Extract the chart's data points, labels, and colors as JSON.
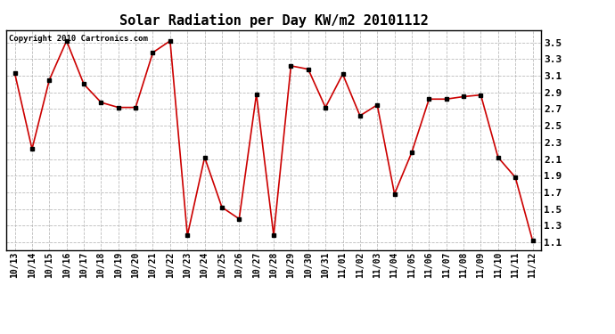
{
  "title": "Solar Radiation per Day KW/m2 20101112",
  "copyright_text": "Copyright 2010 Cartronics.com",
  "labels": [
    "10/13",
    "10/14",
    "10/15",
    "10/16",
    "10/17",
    "10/18",
    "10/19",
    "10/20",
    "10/21",
    "10/22",
    "10/23",
    "10/24",
    "10/25",
    "10/26",
    "10/27",
    "10/28",
    "10/29",
    "10/30",
    "10/31",
    "11/01",
    "11/02",
    "11/03",
    "11/04",
    "11/05",
    "11/06",
    "11/07",
    "11/08",
    "11/09",
    "11/10",
    "11/11",
    "11/12"
  ],
  "values": [
    3.13,
    2.22,
    3.05,
    3.52,
    3.0,
    2.78,
    2.72,
    2.72,
    3.38,
    3.52,
    1.18,
    2.12,
    1.52,
    1.38,
    2.88,
    1.18,
    3.22,
    3.18,
    2.72,
    3.12,
    2.62,
    2.75,
    1.68,
    2.18,
    2.82,
    2.82,
    2.85,
    2.87,
    2.12,
    1.88,
    1.12
  ],
  "line_color": "#cc0000",
  "marker": "s",
  "marker_color": "#000000",
  "marker_size": 3,
  "line_width": 1.2,
  "ylim": [
    1.0,
    3.65
  ],
  "yticks": [
    1.1,
    1.3,
    1.5,
    1.7,
    1.9,
    2.1,
    2.3,
    2.5,
    2.7,
    2.9,
    3.1,
    3.3,
    3.5
  ],
  "bg_color": "#ffffff",
  "grid_color": "#bbbbbb",
  "title_fontsize": 11,
  "tick_fontsize": 7,
  "copyright_fontsize": 6.5,
  "ytick_fontsize": 8
}
